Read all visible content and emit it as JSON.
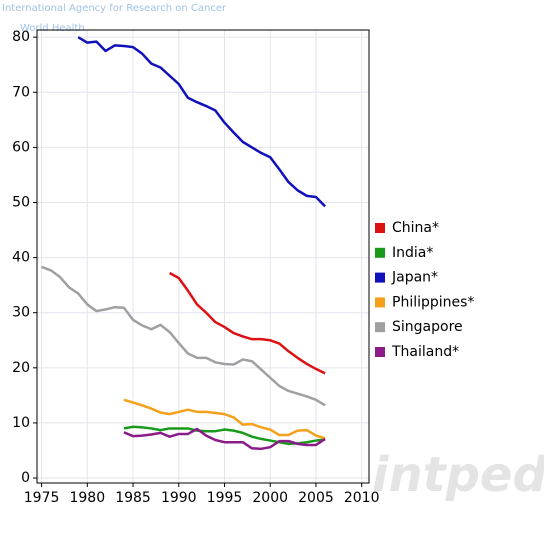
{
  "chart_data": {
    "type": "line",
    "source": "International Agency for Research on Cancer",
    "source_sub": "World Health",
    "watermark": "intpedia",
    "x": [
      1975,
      1976,
      1977,
      1978,
      1979,
      1980,
      1981,
      1982,
      1983,
      1984,
      1985,
      1986,
      1987,
      1988,
      1989,
      1990,
      1991,
      1992,
      1993,
      1994,
      1995,
      1996,
      1997,
      1998,
      1999,
      2000,
      2001,
      2002,
      2003,
      2004,
      2005,
      2006
    ],
    "series": [
      {
        "name": "China*",
        "color": "#dd1111",
        "values": [
          null,
          null,
          null,
          null,
          null,
          null,
          null,
          null,
          null,
          null,
          null,
          null,
          null,
          null,
          37.2,
          36.3,
          34,
          31.5,
          30,
          28.3,
          27.4,
          26.3,
          25.7,
          25.2,
          25.2,
          25,
          24.4,
          23,
          21.8,
          20.7,
          19.8,
          19
        ]
      },
      {
        "name": "India*",
        "color": "#1a9a1a",
        "values": [
          null,
          null,
          null,
          null,
          null,
          null,
          null,
          null,
          null,
          9,
          9.3,
          9.2,
          9,
          8.7,
          9,
          9,
          9,
          8.6,
          8.5,
          8.5,
          8.8,
          8.6,
          8.2,
          7.5,
          7.1,
          6.8,
          6.5,
          6.2,
          6.3,
          6.5,
          6.8,
          7
        ]
      },
      {
        "name": "Japan*",
        "color": "#1111bb",
        "values": [
          null,
          null,
          null,
          null,
          80,
          79,
          79.2,
          77.5,
          78.5,
          78.4,
          78.2,
          77,
          75.2,
          74.5,
          73,
          71.5,
          69,
          68.2,
          67.5,
          66.7,
          64.5,
          62.7,
          61,
          60,
          59,
          58.2,
          56,
          53.7,
          52.2,
          51.2,
          51,
          49.3
        ]
      },
      {
        "name": "Philippines*",
        "color": "#f5a01a",
        "values": [
          null,
          null,
          null,
          null,
          null,
          null,
          null,
          null,
          null,
          14.2,
          13.7,
          13.2,
          12.6,
          11.9,
          11.6,
          12,
          12.4,
          12,
          12,
          11.8,
          11.6,
          11,
          9.7,
          9.8,
          9.2,
          8.8,
          7.8,
          7.8,
          8.6,
          8.7,
          7.7,
          7.2
        ]
      },
      {
        "name": "Singapore",
        "color": "#a0a0a0",
        "values": [
          38.3,
          37.7,
          36.5,
          34.6,
          33.5,
          31.5,
          30.3,
          30.6,
          31,
          30.9,
          28.7,
          27.7,
          27,
          27.8,
          26.5,
          24.5,
          22.6,
          21.8,
          21.8,
          21,
          20.7,
          20.6,
          21.5,
          21.2,
          19.7,
          18.2,
          16.7,
          15.8,
          15.3,
          14.8,
          14.2,
          13.2
        ]
      },
      {
        "name": "Thailand*",
        "color": "#8b1a8b",
        "values": [
          null,
          null,
          null,
          null,
          null,
          null,
          null,
          null,
          null,
          8.3,
          7.6,
          7.7,
          7.9,
          8.2,
          7.5,
          8,
          8,
          8.9,
          7.7,
          6.9,
          6.5,
          6.5,
          6.5,
          5.4,
          5.3,
          5.6,
          6.7,
          6.7,
          6.2,
          6,
          6,
          7.1
        ]
      }
    ],
    "xlim": [
      1974.5,
      2010.8
    ],
    "ylim": [
      -0.9,
      81.3
    ],
    "xticks": [
      1975,
      1980,
      1985,
      1990,
      1995,
      2000,
      2005,
      2010
    ],
    "yticks": [
      0,
      10,
      20,
      30,
      40,
      50,
      60,
      70,
      80
    ],
    "grid": true
  }
}
